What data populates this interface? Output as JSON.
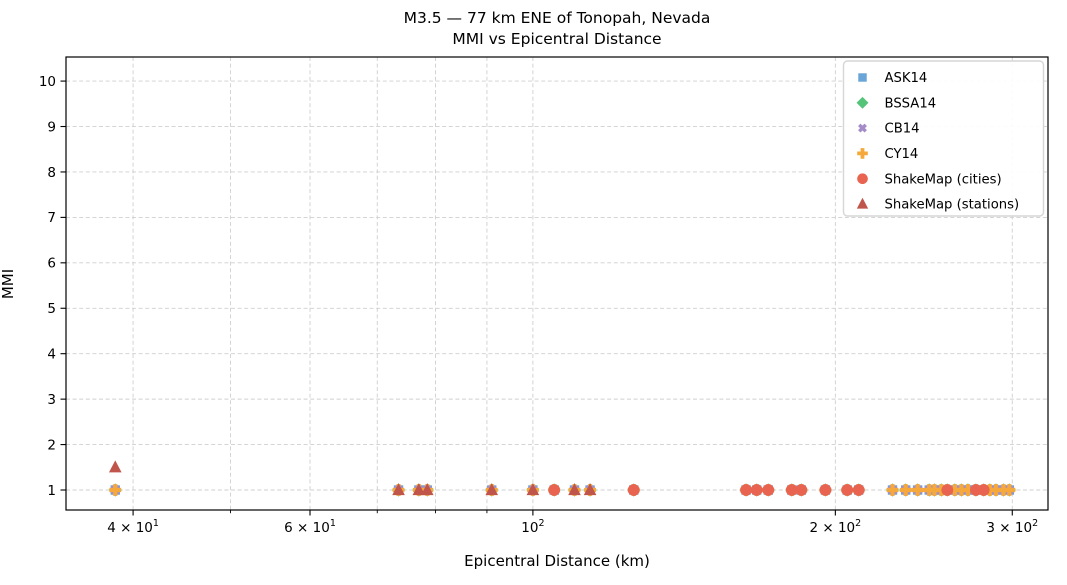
{
  "figure": {
    "title_line1": "M3.5 — 77 km ENE of Tonopah, Nevada",
    "title_line2": "MMI vs Epicentral Distance",
    "xlabel": "Epicentral Distance (km)",
    "ylabel": "MMI"
  },
  "chart_data": {
    "type": "scatter",
    "title": "M3.5 — 77 km ENE of Tonopah, Nevada — MMI vs Epicentral Distance",
    "xlabel": "Epicentral Distance (km)",
    "ylabel": "MMI",
    "x_scale": "log",
    "xlim": [
      34.3,
      325.6
    ],
    "ylim": [
      0.56,
      10.53
    ],
    "grid": true,
    "grid_color": "#cfcfcf",
    "spine_color": "#000000",
    "legend_position": "upper right",
    "x_major_ticks": [
      {
        "value": 40,
        "base": "4 × 10",
        "exp": "1"
      },
      {
        "value": 60,
        "base": "6 × 10",
        "exp": "1"
      },
      {
        "value": 100,
        "base": "10",
        "exp": "2"
      },
      {
        "value": 200,
        "base": "2 × 10",
        "exp": "2"
      },
      {
        "value": 300,
        "base": "3 × 10",
        "exp": "2"
      }
    ],
    "x_minor_ticks": [
      50,
      70,
      80,
      90
    ],
    "y_ticks": [
      1,
      2,
      3,
      4,
      5,
      6,
      7,
      8,
      9,
      10
    ],
    "series": [
      {
        "name": "ASK14",
        "marker": "square",
        "color": "#69a5d7",
        "x": [
          38.4,
          73.5,
          77.0,
          78.5,
          91.0,
          100.0,
          105.0,
          110.0,
          114.0,
          126.0,
          163.0,
          167.0,
          171.5,
          181.0,
          185.0,
          195.5,
          205.5,
          211.0,
          228.0,
          235.0,
          241.5,
          248.0,
          251.0,
          255.0,
          258.5,
          263.0,
          267.0,
          271.0,
          276.0,
          281.0,
          285.0,
          289.0,
          294.0,
          298.0
        ],
        "y": [
          1,
          1,
          1,
          1,
          1,
          1,
          1,
          1,
          1,
          1,
          1,
          1,
          1,
          1,
          1,
          1,
          1,
          1,
          1,
          1,
          1,
          1,
          1,
          1,
          1,
          1,
          1,
          1,
          1,
          1,
          1,
          1,
          1,
          1
        ]
      },
      {
        "name": "BSSA14",
        "marker": "diamond",
        "color": "#55c378",
        "x": [
          38.4,
          73.5,
          77.0,
          78.5,
          91.0,
          100.0,
          105.0,
          110.0,
          114.0,
          126.0,
          163.0,
          167.0,
          171.5,
          181.0,
          185.0,
          195.5,
          205.5,
          211.0,
          228.0,
          235.0,
          241.5,
          248.0,
          251.0,
          255.0,
          258.5,
          263.0,
          267.0,
          271.0,
          276.0,
          281.0,
          285.0,
          289.0,
          294.0,
          298.0
        ],
        "y": [
          1,
          1,
          1,
          1,
          1,
          1,
          1,
          1,
          1,
          1,
          1,
          1,
          1,
          1,
          1,
          1,
          1,
          1,
          1,
          1,
          1,
          1,
          1,
          1,
          1,
          1,
          1,
          1,
          1,
          1,
          1,
          1,
          1,
          1
        ]
      },
      {
        "name": "CB14",
        "marker": "x",
        "color": "#a58cc8",
        "x": [
          38.4,
          73.5,
          77.0,
          78.5,
          91.0,
          100.0,
          105.0,
          110.0,
          114.0,
          126.0,
          163.0,
          167.0,
          171.5,
          181.0,
          185.0,
          195.5,
          205.5,
          211.0,
          228.0,
          235.0,
          241.5,
          248.0,
          251.0,
          255.0,
          258.5,
          263.0,
          267.0,
          271.0,
          276.0,
          281.0,
          285.0,
          289.0,
          294.0,
          298.0
        ],
        "y": [
          1,
          1,
          1,
          1,
          1,
          1,
          1,
          1,
          1,
          1,
          1,
          1,
          1,
          1,
          1,
          1,
          1,
          1,
          1,
          1,
          1,
          1,
          1,
          1,
          1,
          1,
          1,
          1,
          1,
          1,
          1,
          1,
          1,
          1
        ]
      },
      {
        "name": "CY14",
        "marker": "plus",
        "color": "#f5a83c",
        "x": [
          38.4,
          73.5,
          77.0,
          78.5,
          91.0,
          100.0,
          105.0,
          110.0,
          114.0,
          126.0,
          163.0,
          167.0,
          171.5,
          181.0,
          185.0,
          195.5,
          205.5,
          211.0,
          228.0,
          235.0,
          241.5,
          248.0,
          251.0,
          255.0,
          258.5,
          263.0,
          267.0,
          271.0,
          276.0,
          281.0,
          285.0,
          289.0,
          294.0,
          298.0
        ],
        "y": [
          1,
          1,
          1,
          1,
          1,
          1,
          1,
          1,
          1,
          1,
          1,
          1,
          1,
          1,
          1,
          1,
          1,
          1,
          1,
          1,
          1,
          1,
          1,
          1,
          1,
          1,
          1,
          1,
          1,
          1,
          1,
          1,
          1,
          1
        ]
      },
      {
        "name": "ShakeMap (cities)",
        "marker": "circle",
        "color": "#e86450",
        "x": [
          105.0,
          126.0,
          163.0,
          167.0,
          171.5,
          181.0,
          185.0,
          195.5,
          205.5,
          211.0,
          258.5,
          276.0,
          281.0
        ],
        "y": [
          1,
          1,
          1,
          1,
          1,
          1,
          1,
          1,
          1,
          1,
          1,
          1,
          1
        ]
      },
      {
        "name": "ShakeMap (stations)",
        "marker": "triangle",
        "color": "#c0554b",
        "x": [
          38.4,
          73.5,
          77.0,
          78.5,
          91.0,
          100.0,
          110.0,
          114.0
        ],
        "y": [
          1.5,
          1,
          1,
          1,
          1,
          1,
          1,
          1
        ]
      }
    ]
  }
}
